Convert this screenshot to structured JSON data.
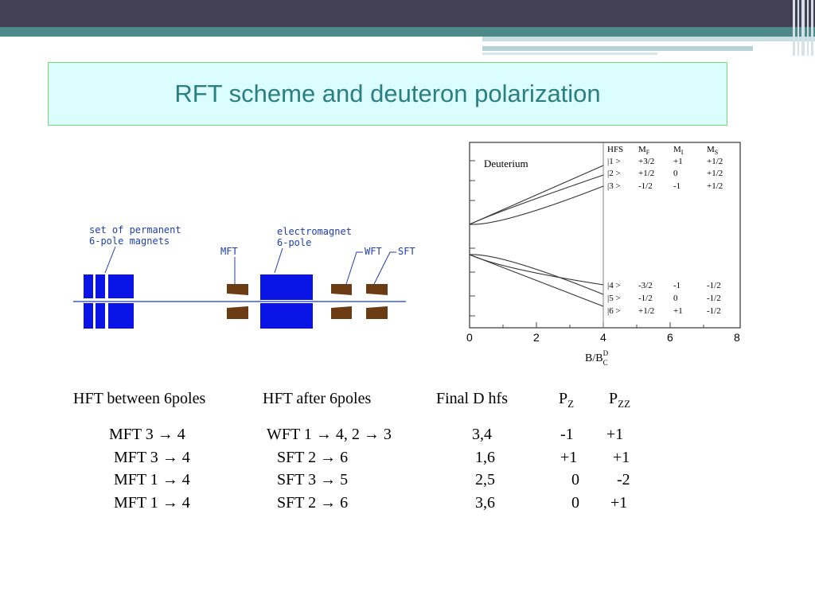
{
  "title": "RFT scheme and deuteron polarization",
  "colors": {
    "accent": "#2a7f80",
    "topbar": "#434153",
    "stripe": "#4f8a8b",
    "title_bg": "#dcfdfd",
    "magnet_blue": "#0a14e6",
    "magnet_brown": "#6b3b14"
  },
  "diagram": {
    "label_set": "set of permanent",
    "label_6pole_magnets": "6-pole magnets",
    "label_electromagnet": "electromagnet",
    "label_6pole": "6-pole",
    "label_mft": "MFT",
    "label_wft": "WFT",
    "label_sft": "SFT"
  },
  "plot": {
    "label": "Deuterium",
    "header": [
      "HFS",
      "M",
      "M",
      "M"
    ],
    "header_subs": [
      "",
      "F",
      "I",
      "S"
    ],
    "upper_states": [
      [
        "|1 >",
        "+3/2",
        "+1",
        "+1/2"
      ],
      [
        "|2 >",
        "+1/2",
        "0",
        "+1/2"
      ],
      [
        "|3 >",
        "-1/2",
        "-1",
        "+1/2"
      ]
    ],
    "lower_states": [
      [
        "|4 >",
        "-3/2",
        "-1",
        "-1/2"
      ],
      [
        "|5 >",
        "-1/2",
        "0",
        "-1/2"
      ],
      [
        "|6 >",
        "+1/2",
        "+1",
        "-1/2"
      ]
    ],
    "x_ticks": [
      "0",
      "2",
      "4",
      "6",
      "8"
    ],
    "x_label": "B/B",
    "x_label_sup": "D",
    "x_label_sub": "C"
  },
  "table": {
    "headers": {
      "col1": "HFT  between 6poles",
      "col2": "HFT after 6poles",
      "col3": "Final D hfs",
      "pz": "P",
      "pz_sub": "Z",
      "pzz": "P",
      "pzz_sub": "ZZ"
    },
    "rows": [
      {
        "c1": "MFT 3 → 4",
        "c2": "WFT 1 → 4, 2 → 3",
        "c3": "3,4",
        "pz": "-1",
        "pzz": "+1"
      },
      {
        "c1": "MFT 3 → 4",
        "c2": "SFT  2 → 6",
        "c3": "1,6",
        "pz": "+1",
        "pzz": "+1"
      },
      {
        "c1": "MFT 1 → 4",
        "c2": "SFT  3 → 5",
        "c3": "2,5",
        "pz": "0",
        "pzz": "-2"
      },
      {
        "c1": "MFT 1 → 4",
        "c2": "SFT  2 → 6",
        "c3": "3,6",
        "pz": "0",
        "pzz": "+1"
      }
    ]
  }
}
